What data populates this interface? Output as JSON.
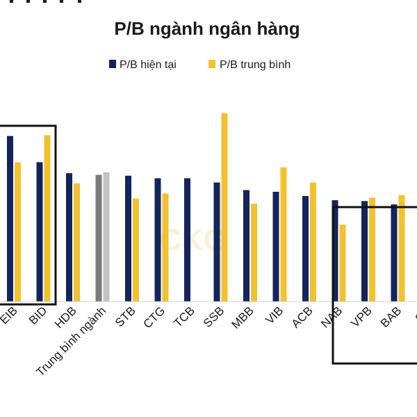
{
  "chart_data": {
    "type": "bar",
    "title": "P/B ngành ngân hàng",
    "watermark": "CKG",
    "legend_position": "top",
    "categories": [
      "EIB",
      "BID",
      "HDB",
      "Trung bình ngành",
      "STB",
      "CTG",
      "TCB",
      "SSB",
      "MBB",
      "VIB",
      "ACB",
      "NAB",
      "VPB",
      "BAB",
      "SH"
    ],
    "series": [
      {
        "name": "P/B hiện tại",
        "color": "#14245c",
        "values": [
          1.96,
          1.65,
          1.52,
          1.5,
          1.49,
          1.46,
          1.46,
          1.41,
          1.32,
          1.3,
          1.25,
          1.2,
          1.19,
          1.15,
          null
        ]
      },
      {
        "name": "P/B trung bình",
        "color": "#f2c12e",
        "values": [
          1.65,
          1.97,
          1.4,
          1.53,
          1.22,
          1.28,
          null,
          2.23,
          1.16,
          1.59,
          1.41,
          0.91,
          1.23,
          1.26,
          null
        ]
      }
    ],
    "highlight_series_index": 3,
    "highlight_colors": [
      "#7a7a7a",
      "#c2c2c2"
    ],
    "ylim": [
      0,
      2.5
    ],
    "grid": false,
    "highlight_boxes": [
      {
        "from": "EIB",
        "to": "BID"
      },
      {
        "from": "NAB",
        "to": "SH"
      }
    ]
  }
}
